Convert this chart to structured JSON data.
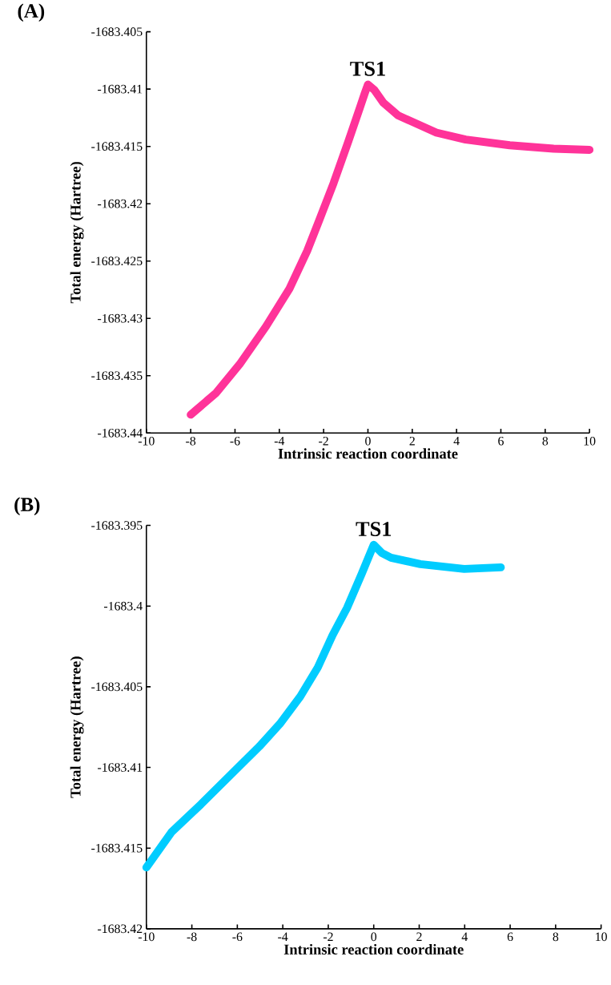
{
  "chart_data": [
    {
      "type": "line",
      "title": "(A)",
      "xlabel": "Intrinsic reaction coordinate",
      "ylabel": "Total energy (Hartree)",
      "xlim": [
        -10,
        10
      ],
      "xticks": [
        -10,
        -8,
        -6,
        -4,
        -2,
        0,
        2,
        4,
        6,
        8,
        10
      ],
      "ylim": [
        -1683.44,
        -1683.405
      ],
      "yticks": [
        -1683.44,
        -1683.435,
        -1683.43,
        -1683.425,
        -1683.42,
        -1683.415,
        -1683.41,
        -1683.405
      ],
      "grid": false,
      "marker": "none",
      "line_style": "solid",
      "annotations": [
        {
          "text": "TS1",
          "x": 0,
          "y": -1683.4096
        }
      ],
      "series": [
        {
          "color": "#ff3399",
          "x": [
            -8,
            -6.85,
            -5.79,
            -4.6,
            -3.54,
            -2.74,
            -2.21,
            -1.55,
            -0.89,
            -0.36,
            -0.15,
            0,
            0.3,
            0.7,
            1.36,
            3.09,
            4.41,
            6.4,
            8.38,
            10
          ],
          "values": [
            -1683.4384,
            -1683.4365,
            -1683.434,
            -1683.4307,
            -1683.4274,
            -1683.4241,
            -1683.4215,
            -1683.4182,
            -1683.4146,
            -1683.4116,
            -1683.4104,
            -1683.4096,
            -1683.4101,
            -1683.4112,
            -1683.4123,
            -1683.4138,
            -1683.4144,
            -1683.4149,
            -1683.4152,
            -1683.4153
          ]
        }
      ]
    },
    {
      "type": "line",
      "title": "(B)",
      "xlabel": "Intrinsic reaction coordinate",
      "ylabel": "Total energy (Hartree)",
      "xlim": [
        -10,
        10
      ],
      "xticks": [
        -10,
        -8,
        -6,
        -4,
        -2,
        0,
        2,
        4,
        6,
        8,
        10
      ],
      "ylim": [
        -1683.42,
        -1683.395
      ],
      "yticks": [
        -1683.42,
        -1683.415,
        -1683.41,
        -1683.405,
        -1683.4,
        -1683.395
      ],
      "grid": false,
      "marker": "none",
      "line_style": "solid",
      "annotations": [
        {
          "text": "TS1",
          "x": 0,
          "y": -1683.3962
        }
      ],
      "series": [
        {
          "color": "#00ccff",
          "x": [
            -10,
            -8.89,
            -7.61,
            -6.32,
            -5.03,
            -4.13,
            -3.23,
            -2.46,
            -1.81,
            -1.17,
            -0.53,
            0,
            0.35,
            0.76,
            2.05,
            3.98,
            5.59
          ],
          "values": [
            -1683.4162,
            -1683.414,
            -1683.4123,
            -1683.4105,
            -1683.4087,
            -1683.4073,
            -1683.4056,
            -1683.4038,
            -1683.4018,
            -1683.4001,
            -1683.398,
            -1683.3962,
            -1683.3967,
            -1683.397,
            -1683.3974,
            -1683.3977,
            -1683.3976
          ]
        }
      ]
    }
  ]
}
